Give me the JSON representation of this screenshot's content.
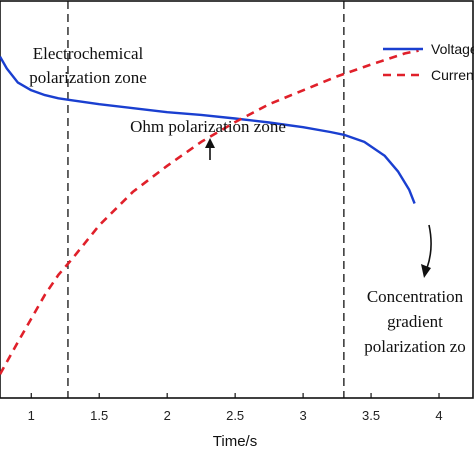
{
  "chart_data": {
    "type": "line",
    "xlabel": "Time/s",
    "x_ticks": [
      "1",
      "1.5",
      "2",
      "2.5",
      "3",
      "3.5",
      "4"
    ],
    "xlim": [
      0.77,
      4.25
    ],
    "ylim": [
      0,
      1
    ],
    "grid": false,
    "legend_position": "top-right",
    "series": [
      {
        "name": "Voltage",
        "color": "#1a3fd0",
        "style": "solid",
        "x": [
          0.77,
          0.82,
          0.9,
          1.0,
          1.1,
          1.2,
          1.3,
          1.5,
          1.75,
          2.0,
          2.25,
          2.5,
          2.75,
          3.0,
          3.2,
          3.3,
          3.45,
          3.6,
          3.7,
          3.78,
          3.82
        ],
        "y": [
          0.86,
          0.83,
          0.795,
          0.775,
          0.763,
          0.755,
          0.75,
          0.74,
          0.73,
          0.72,
          0.713,
          0.704,
          0.694,
          0.682,
          0.67,
          0.663,
          0.645,
          0.61,
          0.57,
          0.525,
          0.49
        ]
      },
      {
        "name": "Current",
        "color": "#e0202a",
        "style": "dashed",
        "x": [
          0.77,
          0.9,
          1.0,
          1.1,
          1.2,
          1.3,
          1.5,
          1.75,
          2.0,
          2.25,
          2.5,
          2.75,
          3.0,
          3.25,
          3.5,
          3.75,
          3.85
        ],
        "y": [
          0.06,
          0.14,
          0.2,
          0.26,
          0.31,
          0.35,
          0.435,
          0.52,
          0.585,
          0.645,
          0.695,
          0.74,
          0.775,
          0.81,
          0.84,
          0.868,
          0.875
        ]
      }
    ],
    "reference_lines": [
      1.27,
      3.3
    ],
    "annotations": [
      {
        "lines": [
          "Electrochemical",
          "polarization zone"
        ]
      },
      {
        "lines": [
          "Ohm polarization zone"
        ]
      },
      {
        "lines": [
          "Concentration",
          "gradient",
          "polarization zo"
        ]
      }
    ]
  }
}
